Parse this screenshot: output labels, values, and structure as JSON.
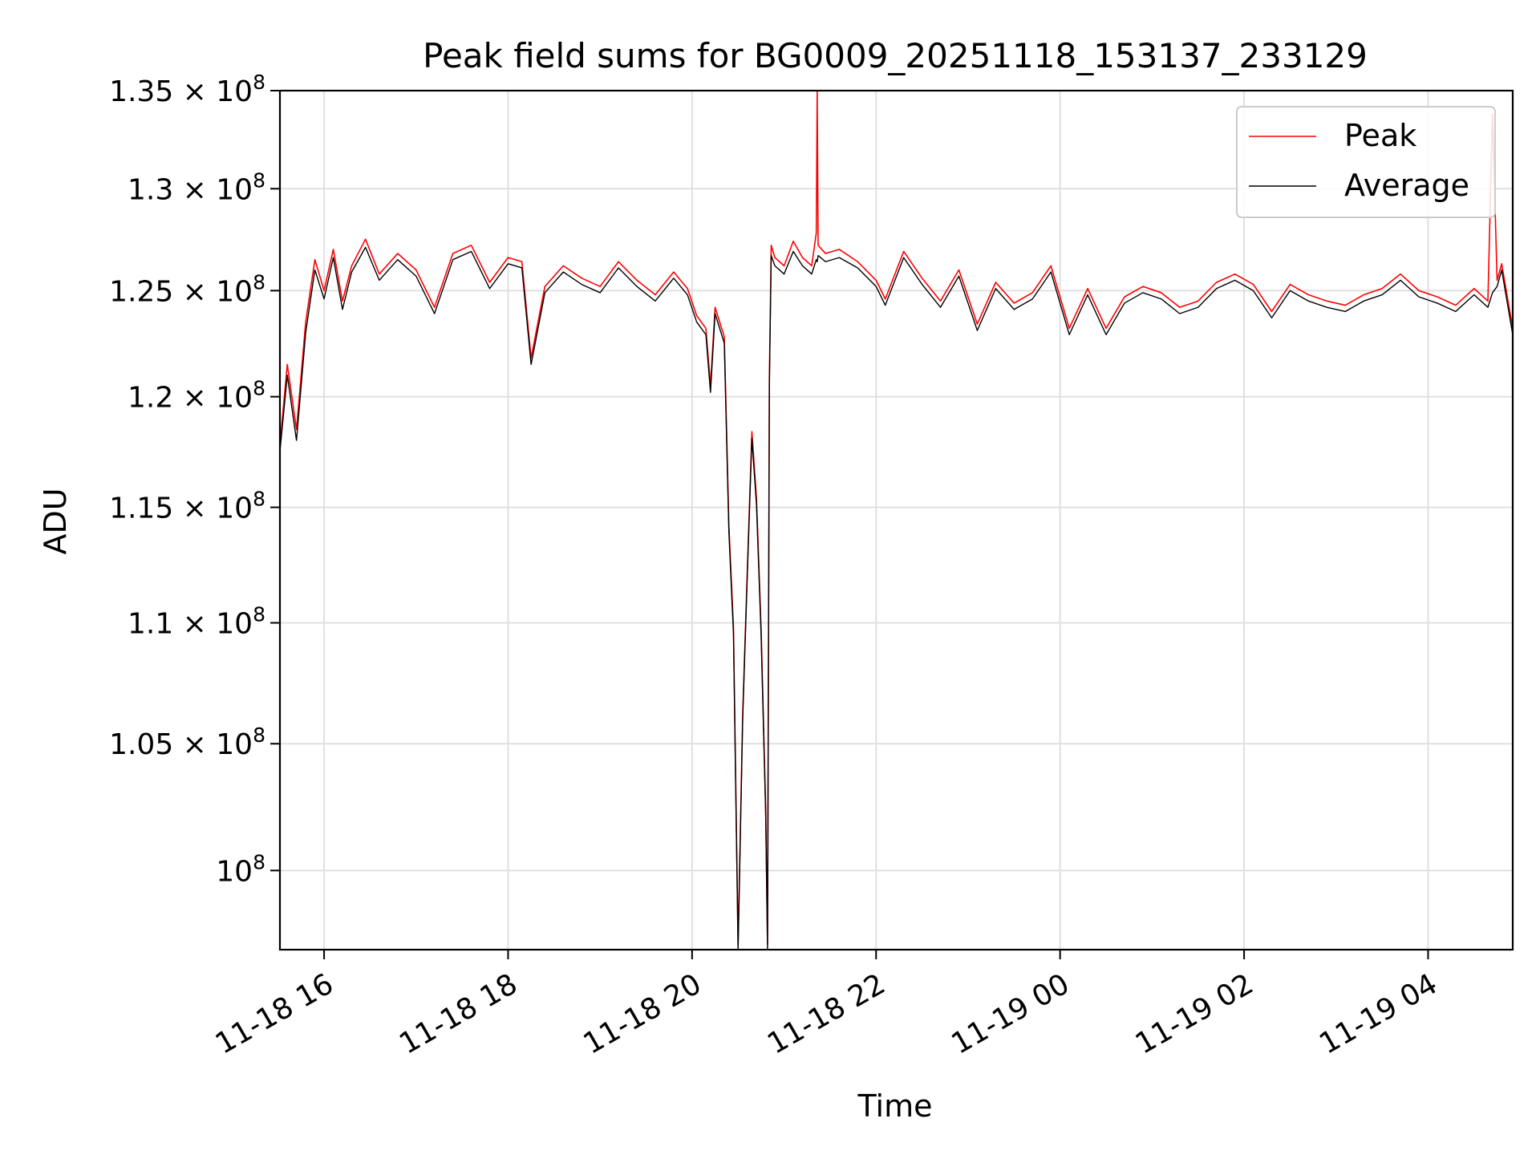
{
  "chart_data": {
    "type": "line",
    "title": "Peak field sums for BG0009_20251118_153137_233129",
    "xlabel": "Time",
    "ylabel": "ADU",
    "x_unit": "hours since 2025-11-18 00:00",
    "xlim": [
      15.52,
      28.92
    ],
    "ylim": [
      97000000,
      135000000
    ],
    "yscale": "log",
    "grid": true,
    "legend_position": "top-right",
    "x_ticks": [
      {
        "value": 16,
        "label": "11-18 16"
      },
      {
        "value": 18,
        "label": "11-18 18"
      },
      {
        "value": 20,
        "label": "11-18 20"
      },
      {
        "value": 22,
        "label": "11-18 22"
      },
      {
        "value": 24,
        "label": "11-19 00"
      },
      {
        "value": 26,
        "label": "11-19 02"
      },
      {
        "value": 28,
        "label": "11-19 04"
      }
    ],
    "y_ticks": [
      {
        "value": 100000000,
        "mantissa": "",
        "base": "10",
        "exp": "8"
      },
      {
        "value": 105000000,
        "mantissa": "1.05",
        "base": "10",
        "exp": "8"
      },
      {
        "value": 110000000,
        "mantissa": "1.1",
        "base": "10",
        "exp": "8"
      },
      {
        "value": 115000000,
        "mantissa": "1.15",
        "base": "10",
        "exp": "8"
      },
      {
        "value": 120000000,
        "mantissa": "1.2",
        "base": "10",
        "exp": "8"
      },
      {
        "value": 125000000,
        "mantissa": "1.25",
        "base": "10",
        "exp": "8"
      },
      {
        "value": 130000000,
        "mantissa": "1.3",
        "base": "10",
        "exp": "8"
      },
      {
        "value": 135000000,
        "mantissa": "1.35",
        "base": "10",
        "exp": "8"
      }
    ],
    "tick_multiply_sign": "×",
    "series": [
      {
        "name": "Peak",
        "color": "#ff0000",
        "x": [
          15.52,
          15.6,
          15.7,
          15.8,
          15.9,
          16.0,
          16.1,
          16.2,
          16.3,
          16.45,
          16.6,
          16.8,
          17.0,
          17.2,
          17.4,
          17.6,
          17.8,
          18.0,
          18.15,
          18.25,
          18.4,
          18.6,
          18.8,
          19.0,
          19.2,
          19.4,
          19.6,
          19.8,
          19.95,
          20.05,
          20.15,
          20.2,
          20.25,
          20.35,
          20.4,
          20.45,
          20.5,
          20.55,
          20.6,
          20.65,
          20.7,
          20.75,
          20.8,
          20.82,
          20.84,
          20.86,
          20.9,
          21.0,
          21.1,
          21.2,
          21.3,
          21.35,
          21.36,
          21.37,
          21.45,
          21.6,
          21.8,
          22.0,
          22.1,
          22.3,
          22.5,
          22.7,
          22.9,
          23.1,
          23.3,
          23.5,
          23.7,
          23.9,
          24.1,
          24.3,
          24.5,
          24.7,
          24.9,
          25.1,
          25.3,
          25.5,
          25.7,
          25.9,
          26.1,
          26.3,
          26.5,
          26.7,
          26.9,
          27.1,
          27.3,
          27.5,
          27.7,
          27.9,
          28.1,
          28.3,
          28.5,
          28.65,
          28.7,
          28.75,
          28.8,
          28.92
        ],
        "values": [
          117800000,
          121500000,
          118500000,
          123500000,
          126500000,
          125000000,
          127000000,
          124500000,
          126200000,
          127500000,
          125800000,
          126800000,
          126000000,
          124200000,
          126800000,
          127200000,
          125400000,
          126600000,
          126400000,
          121800000,
          125200000,
          126200000,
          125600000,
          125200000,
          126400000,
          125500000,
          124800000,
          125900000,
          125100000,
          123800000,
          123200000,
          120500000,
          124200000,
          122800000,
          114200000,
          109800000,
          97200000,
          106200000,
          112200000,
          118400000,
          115400000,
          109800000,
          102400000,
          97200000,
          120800000,
          127200000,
          126600000,
          126200000,
          127400000,
          126600000,
          126200000,
          127800000,
          135000000,
          127200000,
          126800000,
          127000000,
          126400000,
          125500000,
          124600000,
          126900000,
          125600000,
          124500000,
          126000000,
          123400000,
          125400000,
          124400000,
          124900000,
          126200000,
          123200000,
          125100000,
          123200000,
          124700000,
          125200000,
          124900000,
          124200000,
          124500000,
          125400000,
          125800000,
          125300000,
          124000000,
          125300000,
          124800000,
          124500000,
          124300000,
          124800000,
          125100000,
          125800000,
          125000000,
          124700000,
          124300000,
          125100000,
          124500000,
          133800000,
          125500000,
          126300000,
          123200000
        ]
      },
      {
        "name": "Average",
        "color": "#000000",
        "x": [
          15.52,
          15.6,
          15.7,
          15.8,
          15.9,
          16.0,
          16.1,
          16.2,
          16.3,
          16.45,
          16.6,
          16.8,
          17.0,
          17.2,
          17.4,
          17.6,
          17.8,
          18.0,
          18.15,
          18.25,
          18.4,
          18.6,
          18.8,
          19.0,
          19.2,
          19.4,
          19.6,
          19.8,
          19.95,
          20.05,
          20.15,
          20.2,
          20.25,
          20.35,
          20.4,
          20.45,
          20.5,
          20.55,
          20.6,
          20.65,
          20.7,
          20.75,
          20.8,
          20.82,
          20.84,
          20.86,
          20.9,
          21.0,
          21.1,
          21.2,
          21.3,
          21.35,
          21.36,
          21.37,
          21.45,
          21.6,
          21.8,
          22.0,
          22.1,
          22.3,
          22.5,
          22.7,
          22.9,
          23.1,
          23.3,
          23.5,
          23.7,
          23.9,
          24.1,
          24.3,
          24.5,
          24.7,
          24.9,
          25.1,
          25.3,
          25.5,
          25.7,
          25.9,
          26.1,
          26.3,
          26.5,
          26.7,
          26.9,
          27.1,
          27.3,
          27.5,
          27.7,
          27.9,
          28.1,
          28.3,
          28.5,
          28.65,
          28.7,
          28.75,
          28.8,
          28.92
        ],
        "values": [
          117500000,
          121000000,
          118000000,
          123000000,
          126000000,
          124600000,
          126600000,
          124100000,
          125900000,
          127100000,
          125500000,
          126500000,
          125700000,
          123900000,
          126500000,
          126900000,
          125100000,
          126300000,
          126100000,
          121500000,
          124900000,
          125900000,
          125300000,
          124900000,
          126100000,
          125200000,
          124500000,
          125600000,
          124800000,
          123500000,
          122900000,
          120200000,
          123900000,
          122500000,
          113900000,
          109500000,
          97000000,
          106000000,
          112000000,
          118100000,
          115100000,
          109500000,
          102200000,
          97000000,
          120500000,
          126700000,
          126200000,
          125800000,
          126900000,
          126200000,
          125800000,
          126500000,
          126400000,
          126700000,
          126400000,
          126600000,
          126100000,
          125200000,
          124300000,
          126600000,
          125300000,
          124200000,
          125700000,
          123100000,
          125100000,
          124100000,
          124600000,
          125900000,
          122900000,
          124800000,
          122900000,
          124400000,
          124900000,
          124600000,
          123900000,
          124200000,
          125100000,
          125500000,
          125000000,
          123700000,
          125000000,
          124500000,
          124200000,
          124000000,
          124500000,
          124800000,
          125500000,
          124700000,
          124400000,
          124000000,
          124800000,
          124200000,
          124900000,
          125200000,
          126000000,
          122900000
        ]
      }
    ]
  }
}
